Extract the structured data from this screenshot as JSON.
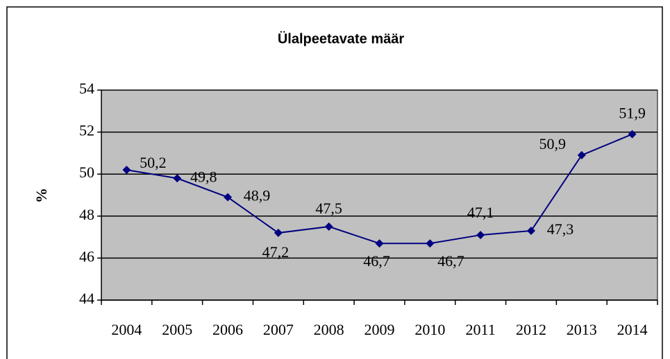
{
  "chart_data": {
    "type": "line",
    "title": "Ülalpeetavate määr",
    "y_label": "%",
    "categories": [
      "2004",
      "2005",
      "2006",
      "2007",
      "2008",
      "2009",
      "2010",
      "2011",
      "2012",
      "2013",
      "2014"
    ],
    "values": [
      50.2,
      49.8,
      48.9,
      47.2,
      47.5,
      46.7,
      46.7,
      47.1,
      47.3,
      50.9,
      51.9
    ],
    "value_labels": [
      "50,2",
      "49,8",
      "48,9",
      "47,2",
      "47,5",
      "46,7",
      "46,7",
      "47,1",
      "47,3",
      "50,9",
      "51,9"
    ],
    "color": "#000080",
    "plot_background": "#c0c0c0",
    "ylim": [
      44,
      54
    ],
    "yticks": [
      44,
      46,
      48,
      50,
      52,
      54
    ],
    "grid": true
  }
}
